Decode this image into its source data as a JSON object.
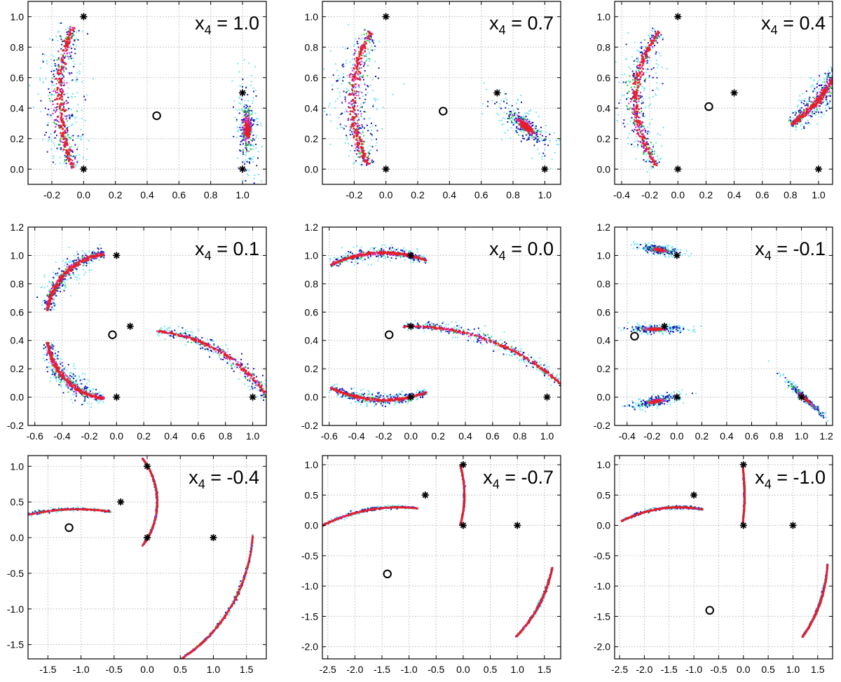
{
  "figure": {
    "title": "",
    "colors": {
      "pattern": [
        "#6fe6f0",
        "#1414b4",
        "#32cd32",
        "#e21ec8",
        "#e61e28"
      ],
      "marker": "#000000",
      "grid": "#b8b8b8"
    },
    "markers": {
      "star": "fixed point (black asterisk)",
      "circle": "centroid (open circle)"
    }
  },
  "chart_data": [
    {
      "type": "scatter",
      "panel": "x4 = 1.0",
      "label_main": "x",
      "label_sub": "4",
      "label_value": "= 1.0",
      "xlim": [
        -0.35,
        1.15
      ],
      "ylim": [
        -0.1,
        1.1
      ],
      "xticks": [
        -0.2,
        0.0,
        0.2,
        0.4,
        0.6,
        0.8,
        1.0
      ],
      "xtick_labels": [
        "-0.2",
        "0.0",
        "0.2",
        "0.4",
        "0.6",
        "0.8",
        "1.0"
      ],
      "yticks": [
        0.0,
        0.2,
        0.4,
        0.6,
        0.8,
        1.0
      ],
      "ytick_labels": [
        "0.0",
        "0.2",
        "0.4",
        "0.6",
        "0.8",
        "1.0"
      ],
      "stars": [
        [
          0,
          0
        ],
        [
          0,
          1
        ],
        [
          1,
          0
        ],
        [
          1,
          0.5
        ]
      ],
      "circle": [
        0.46,
        0.35
      ],
      "clusters": [
        {
          "kind": "arc",
          "cx": 1.2,
          "cy": 0.47,
          "r": 1.35,
          "a0": 160,
          "a1": 200,
          "w": 0.09
        },
        {
          "kind": "blob",
          "cx": 1.03,
          "cy": 0.26,
          "rx": 0.045,
          "ry": 0.17,
          "rot": 0
        }
      ]
    },
    {
      "type": "scatter",
      "panel": "x4 = 0.7",
      "label_main": "x",
      "label_sub": "4",
      "label_value": "= 0.7",
      "xlim": [
        -0.4,
        1.1
      ],
      "ylim": [
        -0.1,
        1.1
      ],
      "xticks": [
        -0.2,
        0.0,
        0.2,
        0.4,
        0.6,
        0.8,
        1.0
      ],
      "xtick_labels": [
        "-0.2",
        "0.0",
        "0.2",
        "0.4",
        "0.6",
        "0.8",
        "1.0"
      ],
      "yticks": [
        0.0,
        0.2,
        0.4,
        0.6,
        0.8,
        1.0
      ],
      "ytick_labels": [
        "0.0",
        "0.2",
        "0.4",
        "0.6",
        "0.8",
        "1.0"
      ],
      "stars": [
        [
          0,
          0
        ],
        [
          0,
          1
        ],
        [
          1,
          0
        ],
        [
          0.7,
          0.5
        ]
      ],
      "circle": [
        0.36,
        0.38
      ],
      "clusters": [
        {
          "kind": "arc",
          "cx": 0.75,
          "cy": 0.45,
          "r": 0.96,
          "a0": 152,
          "a1": 206,
          "w": 0.09
        },
        {
          "kind": "blob",
          "cx": 0.88,
          "cy": 0.28,
          "rx": 0.16,
          "ry": 0.05,
          "rot": -42
        }
      ]
    },
    {
      "type": "scatter",
      "panel": "x4 = 0.4",
      "label_main": "x",
      "label_sub": "4",
      "label_value": "= 0.4",
      "xlim": [
        -0.45,
        1.1
      ],
      "ylim": [
        -0.1,
        1.1
      ],
      "xticks": [
        -0.4,
        -0.2,
        0.0,
        0.2,
        0.4,
        0.6,
        0.8,
        1.0
      ],
      "xtick_labels": [
        "-0.4",
        "-0.2",
        "0.0",
        "0.2",
        "0.4",
        "0.6",
        "0.8",
        "1.0"
      ],
      "yticks": [
        0.0,
        0.2,
        0.4,
        0.6,
        0.8,
        1.0
      ],
      "ytick_labels": [
        "0.0",
        "0.2",
        "0.4",
        "0.6",
        "0.8",
        "1.0"
      ],
      "stars": [
        [
          0,
          0
        ],
        [
          0,
          1
        ],
        [
          1,
          0
        ],
        [
          0.4,
          0.5
        ]
      ],
      "circle": [
        0.22,
        0.41
      ],
      "clusters": [
        {
          "kind": "arc",
          "cx": 0.4,
          "cy": 0.45,
          "r": 0.7,
          "a0": 140,
          "a1": 218,
          "w": 0.08
        },
        {
          "kind": "arc",
          "cx": 0.3,
          "cy": 1.1,
          "r": 0.95,
          "a0": 302,
          "a1": 332,
          "w": 0.06
        }
      ]
    },
    {
      "type": "scatter",
      "panel": "x4 = 0.1",
      "label_main": "x",
      "label_sub": "4",
      "label_value": "= 0.1",
      "xlim": [
        -0.65,
        1.1
      ],
      "ylim": [
        -0.2,
        1.2
      ],
      "xticks": [
        -0.6,
        -0.4,
        -0.2,
        0.0,
        0.2,
        0.4,
        0.6,
        0.8,
        1.0
      ],
      "xtick_labels": [
        "-0.6",
        "-0.4",
        "-0.2",
        "0.0",
        "0.2",
        "0.4",
        "0.6",
        "0.8",
        "1.0"
      ],
      "yticks": [
        -0.2,
        0.0,
        0.2,
        0.4,
        0.6,
        0.8,
        1.0,
        1.2
      ],
      "ytick_labels": [
        "-0.2",
        "0.0",
        "0.2",
        "0.4",
        "0.6",
        "0.8",
        "1.0",
        "1.2"
      ],
      "stars": [
        [
          0,
          0
        ],
        [
          0,
          1
        ],
        [
          1,
          0
        ],
        [
          0.1,
          0.5
        ]
      ],
      "circle": [
        -0.03,
        0.44
      ],
      "clusters": [
        {
          "kind": "arc",
          "cx": -0.05,
          "cy": 0.55,
          "r": 0.46,
          "a0": 95,
          "a1": 172,
          "w": 0.05
        },
        {
          "kind": "arc",
          "cx": -0.05,
          "cy": 0.45,
          "r": 0.46,
          "a0": 188,
          "a1": 265,
          "w": 0.05
        },
        {
          "kind": "arc",
          "cx": 0.2,
          "cy": -0.65,
          "r": 1.12,
          "a0": 18,
          "a1": 85,
          "w": 0.04
        }
      ]
    },
    {
      "type": "scatter",
      "panel": "x4 = 0.0",
      "label_main": "x",
      "label_sub": "4",
      "label_value": "= 0.0",
      "xlim": [
        -0.65,
        1.1
      ],
      "ylim": [
        -0.2,
        1.2
      ],
      "xticks": [
        -0.6,
        -0.4,
        -0.2,
        0.0,
        0.2,
        0.4,
        0.6,
        0.8,
        1.0
      ],
      "xtick_labels": [
        "-0.6",
        "-0.4",
        "-0.2",
        "0.0",
        "0.2",
        "0.4",
        "0.6",
        "0.8",
        "1.0"
      ],
      "yticks": [
        -0.2,
        0.0,
        0.2,
        0.4,
        0.6,
        0.8,
        1.0,
        1.2
      ],
      "ytick_labels": [
        "-0.2",
        "0.0",
        "0.2",
        "0.4",
        "0.6",
        "0.8",
        "1.0",
        "1.2"
      ],
      "stars": [
        [
          0,
          0
        ],
        [
          0,
          1
        ],
        [
          1,
          0
        ],
        [
          0,
          0.5
        ]
      ],
      "circle": [
        -0.16,
        0.44
      ],
      "clusters": [
        {
          "kind": "arc",
          "cx": -0.2,
          "cy": 0.1,
          "r": 0.92,
          "a0": 70,
          "a1": 115,
          "w": 0.03
        },
        {
          "kind": "arc",
          "cx": -0.2,
          "cy": 0.9,
          "r": 0.92,
          "a0": 245,
          "a1": 290,
          "w": 0.03
        },
        {
          "kind": "arc",
          "cx": 0.0,
          "cy": -1.2,
          "r": 1.7,
          "a0": 45,
          "a1": 92,
          "w": 0.03
        }
      ]
    },
    {
      "type": "scatter",
      "panel": "x4 = -0.1",
      "label_main": "x",
      "label_sub": "4",
      "label_value": "= -0.1",
      "xlim": [
        -0.5,
        1.25
      ],
      "ylim": [
        -0.2,
        1.2
      ],
      "xticks": [
        -0.4,
        -0.2,
        0.0,
        0.2,
        0.4,
        0.6,
        0.8,
        1.0,
        1.2
      ],
      "xtick_labels": [
        "-0.4",
        "-0.2",
        "0.0",
        "0.2",
        "0.4",
        "0.6",
        "0.8",
        "1.0",
        "1.2"
      ],
      "yticks": [
        -0.2,
        0.0,
        0.2,
        0.4,
        0.6,
        0.8,
        1.0,
        1.2
      ],
      "ytick_labels": [
        "-0.2",
        "0.0",
        "0.2",
        "0.4",
        "0.6",
        "0.8",
        "1.0",
        "1.2"
      ],
      "stars": [
        [
          0,
          0
        ],
        [
          0,
          1
        ],
        [
          1,
          0
        ],
        [
          -0.1,
          0.5
        ]
      ],
      "circle": [
        -0.34,
        0.43
      ],
      "clusters": [
        {
          "kind": "blob",
          "cx": -0.14,
          "cy": 1.04,
          "rx": 0.1,
          "ry": 0.018,
          "rot": -8
        },
        {
          "kind": "blob",
          "cx": -0.17,
          "cy": 0.48,
          "rx": 0.15,
          "ry": 0.016,
          "rot": 0
        },
        {
          "kind": "blob",
          "cx": -0.17,
          "cy": -0.03,
          "rx": 0.12,
          "ry": 0.02,
          "rot": 10
        },
        {
          "kind": "blob",
          "cx": 1.03,
          "cy": -0.01,
          "rx": 0.13,
          "ry": 0.012,
          "rot": -40
        }
      ]
    },
    {
      "type": "scatter",
      "panel": "x4 = -0.4",
      "label_main": "x",
      "label_sub": "4",
      "label_value": "= -0.4",
      "xlim": [
        -1.8,
        1.8
      ],
      "ylim": [
        -1.7,
        1.15
      ],
      "xticks": [
        -1.5,
        -1.0,
        -0.5,
        0.0,
        0.5,
        1.0,
        1.5
      ],
      "xtick_labels": [
        "-1.5",
        "-1.0",
        "-0.5",
        "0.0",
        "0.5",
        "1.0",
        "1.5"
      ],
      "yticks": [
        -1.5,
        -1.0,
        -0.5,
        0.0,
        0.5,
        1.0
      ],
      "ytick_labels": [
        "-1.5",
        "-1.0",
        "-0.5",
        "0.0",
        "0.5",
        "1.0"
      ],
      "stars": [
        [
          0,
          0
        ],
        [
          0,
          1
        ],
        [
          1,
          0
        ],
        [
          -0.4,
          0.5
        ]
      ],
      "circle": [
        -1.18,
        0.14
      ],
      "clusters": [
        {
          "kind": "arc",
          "cx": -1.05,
          "cy": -3.2,
          "r": 3.6,
          "a0": 82,
          "a1": 112,
          "w": 0.015
        },
        {
          "kind": "arc",
          "cx": -0.8,
          "cy": 0.5,
          "r": 0.95,
          "a0": -40,
          "a1": 40,
          "w": 0.01
        },
        {
          "kind": "arc",
          "cx": -0.6,
          "cy": 0.2,
          "r": 2.2,
          "a0": -62,
          "a1": -4,
          "w": 0.015
        }
      ]
    },
    {
      "type": "scatter",
      "panel": "x4 = -0.7",
      "label_main": "x",
      "label_sub": "4",
      "label_value": "= -0.7",
      "xlim": [
        -2.6,
        1.8
      ],
      "ylim": [
        -2.2,
        1.15
      ],
      "xticks": [
        -2.5,
        -2.0,
        -1.5,
        -1.0,
        -0.5,
        0.0,
        0.5,
        1.0,
        1.5
      ],
      "xtick_labels": [
        "-2.5",
        "-2.0",
        "-1.5",
        "-1.0",
        "-0.5",
        "0.0",
        "0.5",
        "1.0",
        "1.5"
      ],
      "yticks": [
        -2.0,
        -1.5,
        -1.0,
        -0.5,
        0.0,
        0.5,
        1.0
      ],
      "ytick_labels": [
        "-2.0",
        "-1.5",
        "-1.0",
        "-0.5",
        "0.0",
        "0.5",
        "1.0"
      ],
      "stars": [
        [
          0,
          0
        ],
        [
          0,
          1
        ],
        [
          1,
          0
        ],
        [
          -0.7,
          0.5
        ]
      ],
      "circle": [
        -1.4,
        -0.8
      ],
      "clusters": [
        {
          "kind": "arc",
          "cx": -1.2,
          "cy": -3.1,
          "r": 3.4,
          "a0": 84,
          "a1": 119,
          "w": 0.02
        },
        {
          "kind": "arc",
          "cx": -1.6,
          "cy": 0.5,
          "r": 1.62,
          "a0": -18,
          "a1": 18,
          "w": 0.01
        },
        {
          "kind": "arc",
          "cx": -0.5,
          "cy": -0.2,
          "r": 2.2,
          "a0": -48,
          "a1": -13,
          "w": 0.015
        }
      ]
    },
    {
      "type": "scatter",
      "panel": "x4 = -1.0",
      "label_main": "x",
      "label_sub": "4",
      "label_value": "= -1.0",
      "xlim": [
        -2.6,
        1.8
      ],
      "ylim": [
        -2.2,
        1.15
      ],
      "xticks": [
        -2.5,
        -2.0,
        -1.5,
        -1.0,
        -0.5,
        0.0,
        0.5,
        1.0,
        1.5
      ],
      "xtick_labels": [
        "-2.5",
        "-2.0",
        "-1.5",
        "-1.0",
        "-0.5",
        "0.0",
        "0.5",
        "1.0",
        "1.5"
      ],
      "yticks": [
        -2.0,
        -1.5,
        -1.0,
        -0.5,
        0.0,
        0.5,
        1.0
      ],
      "ytick_labels": [
        "-2.0",
        "-1.5",
        "-1.0",
        "-0.5",
        "0.0",
        "0.5",
        "1.0"
      ],
      "stars": [
        [
          0,
          0
        ],
        [
          0,
          1
        ],
        [
          1,
          0
        ],
        [
          -1.0,
          0.5
        ]
      ],
      "circle": [
        -0.68,
        -1.4
      ],
      "clusters": [
        {
          "kind": "arc",
          "cx": -1.3,
          "cy": -2.8,
          "r": 3.1,
          "a0": 81,
          "a1": 112,
          "w": 0.02
        },
        {
          "kind": "arc",
          "cx": -3.0,
          "cy": 0.5,
          "r": 3.02,
          "a0": -9,
          "a1": 9,
          "w": 0.01
        },
        {
          "kind": "arc",
          "cx": -0.3,
          "cy": -0.5,
          "r": 2.0,
          "a0": -42,
          "a1": -4,
          "w": 0.015
        }
      ]
    }
  ]
}
